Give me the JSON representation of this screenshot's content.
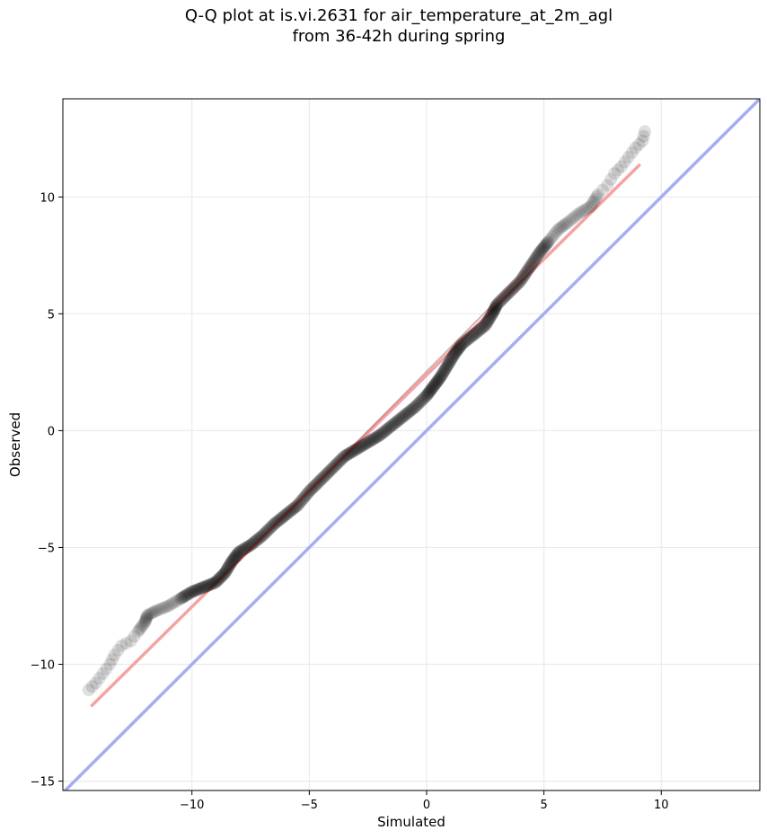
{
  "chart_data": {
    "type": "scatter",
    "title_line1": "Q-Q plot at is.vi.2631 for air_temperature_at_2m_agl",
    "title_line2": "from 36-42h during spring",
    "xlabel": "Simulated",
    "ylabel": "Observed",
    "xlim": [
      -15.5,
      14.2
    ],
    "ylim": [
      -15.4,
      14.2
    ],
    "xticks": [
      -10,
      -5,
      0,
      5,
      10
    ],
    "yticks": [
      -15,
      -10,
      -5,
      0,
      5,
      10
    ],
    "xtick_labels": [
      "−10",
      "−5",
      "0",
      "5",
      "10"
    ],
    "ytick_labels": [
      "−15",
      "−10",
      "−5",
      "0",
      "5",
      "10"
    ],
    "grid": true,
    "quantile_curve": [
      [
        -14.4,
        -11.1
      ],
      [
        -14.1,
        -10.8
      ],
      [
        -13.8,
        -10.4
      ],
      [
        -13.5,
        -10.0
      ],
      [
        -13.3,
        -9.6
      ],
      [
        -13.0,
        -9.2
      ],
      [
        -12.6,
        -9.0
      ],
      [
        -12.3,
        -8.6
      ],
      [
        -12.0,
        -8.2
      ],
      [
        -11.9,
        -7.9
      ],
      [
        -11.5,
        -7.7
      ],
      [
        -11.0,
        -7.5
      ],
      [
        -10.5,
        -7.2
      ],
      [
        -10.0,
        -6.9
      ],
      [
        -9.5,
        -6.7
      ],
      [
        -9.0,
        -6.5
      ],
      [
        -8.6,
        -6.1
      ],
      [
        -8.3,
        -5.6
      ],
      [
        -8.0,
        -5.2
      ],
      [
        -7.5,
        -4.9
      ],
      [
        -7.0,
        -4.5
      ],
      [
        -6.5,
        -4.0
      ],
      [
        -6.0,
        -3.6
      ],
      [
        -5.5,
        -3.2
      ],
      [
        -5.0,
        -2.6
      ],
      [
        -4.5,
        -2.1
      ],
      [
        -4.0,
        -1.6
      ],
      [
        -3.5,
        -1.1
      ],
      [
        -3.0,
        -0.8
      ],
      [
        -2.5,
        -0.5
      ],
      [
        -2.0,
        -0.2
      ],
      [
        -1.5,
        0.2
      ],
      [
        -1.0,
        0.6
      ],
      [
        -0.5,
        1.0
      ],
      [
        0.0,
        1.5
      ],
      [
        0.3,
        1.9
      ],
      [
        0.6,
        2.3
      ],
      [
        0.9,
        2.8
      ],
      [
        1.2,
        3.3
      ],
      [
        1.5,
        3.7
      ],
      [
        2.0,
        4.1
      ],
      [
        2.5,
        4.5
      ],
      [
        2.8,
        5.0
      ],
      [
        3.0,
        5.4
      ],
      [
        3.5,
        5.9
      ],
      [
        4.0,
        6.4
      ],
      [
        4.4,
        7.0
      ],
      [
        4.8,
        7.6
      ],
      [
        5.2,
        8.1
      ],
      [
        5.6,
        8.6
      ],
      [
        6.0,
        8.9
      ],
      [
        6.5,
        9.3
      ],
      [
        7.0,
        9.6
      ],
      [
        7.3,
        10.1
      ],
      [
        7.7,
        10.5
      ],
      [
        8.0,
        11.0
      ],
      [
        8.3,
        11.3
      ],
      [
        8.6,
        11.7
      ],
      [
        8.9,
        12.1
      ],
      [
        9.2,
        12.4
      ],
      [
        9.3,
        12.8
      ]
    ],
    "fit_line": {
      "x": [
        -14.3,
        9.1
      ],
      "y": [
        -11.8,
        11.4
      ]
    },
    "reference_line": {
      "x": [
        -15.5,
        14.2
      ],
      "y": [
        -15.5,
        14.2
      ]
    },
    "colors": {
      "points": "#000000",
      "fit_line": "#f4a3a3",
      "reference_line": "#a8abf5",
      "grid": "#ebebeb",
      "axes": "#000000"
    }
  }
}
